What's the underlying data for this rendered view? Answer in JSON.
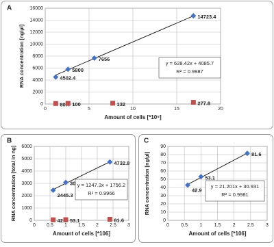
{
  "chart_data": [
    {
      "type": "scatter",
      "panel": "A",
      "x_label": "Amount of cells [*10⁵]",
      "y_label": "RNA concentration [ng/µl]",
      "xlim": [
        0,
        20
      ],
      "xticks": [
        0,
        5,
        10,
        15,
        20
      ],
      "ylim": [
        0,
        16000
      ],
      "yticks": [
        0,
        2000,
        4000,
        6000,
        8000,
        10000,
        12000,
        14000,
        16000
      ],
      "grid": true,
      "series": [
        {
          "color": "#4472c4",
          "marker": "diamond",
          "x": [
            1.2,
            2.6,
            5.6,
            16.9
          ],
          "values": [
            4502.4,
            5800,
            7656,
            14723.4
          ]
        },
        {
          "color": "#c0504d",
          "marker": "square",
          "x": [
            1.2,
            2.6,
            7.7,
            16.9
          ],
          "values": [
            80.4,
            100,
            132,
            277.8
          ]
        }
      ],
      "trendline": {
        "slope": 628.42,
        "intercept": 4085.7
      },
      "equation": "y = 628.42x + 4085.7",
      "r_squared": "R² = 0.9987"
    },
    {
      "type": "scatter",
      "panel": "B",
      "x_label": "Amount of cells [*106]",
      "y_label": "RNA concentration [total in ng]",
      "xlim": [
        0,
        3
      ],
      "xticks": [
        0,
        0.5,
        1,
        1.5,
        2,
        2.5,
        3
      ],
      "ylim": [
        0,
        6000
      ],
      "yticks": [
        0,
        1000,
        2000,
        3000,
        4000,
        5000,
        6000
      ],
      "grid": true,
      "series": [
        {
          "color": "#4472c4",
          "marker": "diamond",
          "x": [
            0.6,
            1,
            2.4
          ],
          "values": [
            2445.3,
            3079.8,
            4732.8
          ]
        },
        {
          "color": "#c0504d",
          "marker": "square",
          "x": [
            0.6,
            1,
            2.4
          ],
          "values": [
            42.9,
            53.1,
            81.6
          ]
        }
      ],
      "trendline": {
        "slope": 1247.3,
        "intercept": 1756.2
      },
      "equation": "y = 1247.3x + 1756.2",
      "r_squared": "R² = 0.9966"
    },
    {
      "type": "scatter",
      "panel": "C",
      "x_label": "Amount of cells [*106]",
      "y_label": "RNA concentration [ng/µl]",
      "xlim": [
        0,
        3
      ],
      "xticks": [
        0,
        0.5,
        1,
        1.5,
        2,
        2.5,
        3
      ],
      "ylim": [
        0,
        90
      ],
      "yticks": [
        0,
        10,
        20,
        30,
        40,
        50,
        60,
        70,
        80,
        90
      ],
      "grid": true,
      "series": [
        {
          "color": "#4472c4",
          "marker": "diamond",
          "x": [
            0.6,
            1,
            2.4
          ],
          "values": [
            42.9,
            53.1,
            81.6
          ]
        }
      ],
      "trendline": {
        "slope": 21.201,
        "intercept": 30.931
      },
      "equation": "y = 21.201x + 30.931",
      "r_squared": "R² = 0.9981"
    }
  ]
}
